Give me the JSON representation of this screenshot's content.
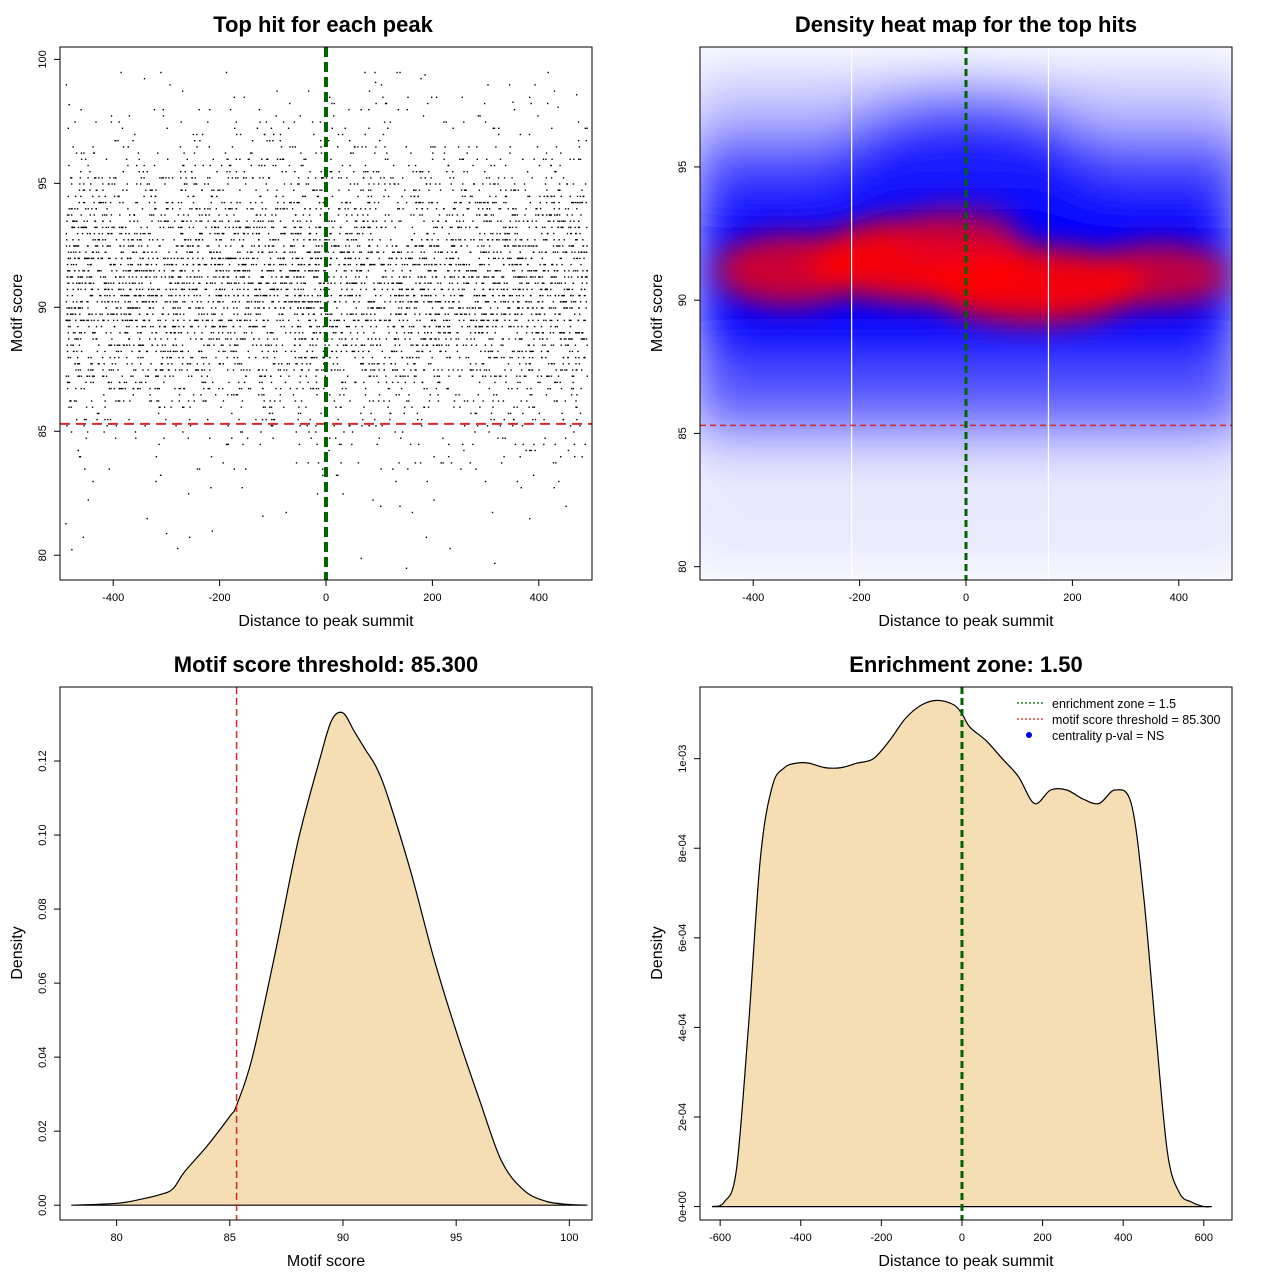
{
  "colors": {
    "points": "#000000",
    "threshold": "#d62728",
    "zone": "#006400",
    "fill": "#f5deb3",
    "heat_low": "#0000ff",
    "heat_high": "#ff0000",
    "legend_point": "#0000ff"
  },
  "chart_data": [
    {
      "id": "scatter",
      "type": "scatter",
      "title": "Top hit for each peak",
      "xlabel": "Distance to peak summit",
      "ylabel": "Motif score",
      "xlim": [
        -500,
        500
      ],
      "ylim": [
        79,
        100.5
      ],
      "xticks": [
        -400,
        -200,
        0,
        200,
        400
      ],
      "yticks": [
        80,
        85,
        90,
        95,
        100
      ],
      "xtick_labels": [
        "-400",
        "-200",
        "0",
        "200",
        "400"
      ],
      "ytick_labels": [
        "80",
        "85",
        "90",
        "95",
        "100"
      ],
      "summary": {
        "n_points_approx": 5000,
        "x_range": [
          -490,
          490
        ],
        "score_mean": 90.8,
        "score_sd": 3.0,
        "score_range": [
          79.5,
          99.5
        ]
      },
      "sample_points": [
        [
          -490,
          81.3
        ],
        [
          -484,
          98.2
        ],
        [
          -301,
          80.9
        ],
        [
          -280,
          80.3
        ],
        [
          -215,
          81.0
        ],
        [
          -120,
          81.6
        ],
        [
          65,
          79.9
        ],
        [
          92,
          99.1
        ],
        [
          150,
          79.5
        ],
        [
          185,
          99.4
        ],
        [
          232,
          80.3
        ],
        [
          316,
          79.7
        ],
        [
          350,
          98.3
        ],
        [
          435,
          98.1
        ],
        [
          450,
          82.0
        ],
        [
          470,
          98.6
        ]
      ],
      "threshold_y": 85.3,
      "summit_x": 0
    },
    {
      "id": "heatmap",
      "type": "heatmap",
      "title": "Density heat map for the top hits",
      "xlabel": "Distance to peak summit",
      "ylabel": "Motif score",
      "xlim": [
        -500,
        500
      ],
      "ylim": [
        79.5,
        99.5
      ],
      "xticks": [
        -400,
        -200,
        0,
        200,
        400
      ],
      "yticks": [
        80,
        85,
        90,
        95
      ],
      "xtick_labels": [
        "-400",
        "-200",
        "0",
        "200",
        "400"
      ],
      "ytick_labels": [
        "80",
        "85",
        "90",
        "95"
      ],
      "density_peak": {
        "x": 0,
        "y": 90.5
      },
      "high_density_band": [
        88.5,
        92.5
      ],
      "white_lines_x": [
        -215,
        155
      ],
      "threshold_y": 85.3,
      "summit_x": 0
    },
    {
      "id": "score_density",
      "type": "area",
      "title": "Motif score threshold: 85.300",
      "xlabel": "Motif score",
      "ylabel": "Density",
      "xlim": [
        77.5,
        101
      ],
      "ylim": [
        -0.004,
        0.14
      ],
      "xticks": [
        80,
        85,
        90,
        95,
        100
      ],
      "yticks": [
        0.0,
        0.02,
        0.04,
        0.06,
        0.08,
        0.1,
        0.12
      ],
      "xtick_labels": [
        "80",
        "85",
        "90",
        "95",
        "100"
      ],
      "ytick_labels": [
        "0.00",
        "0.02",
        "0.04",
        "0.06",
        "0.08",
        "0.10",
        "0.12"
      ],
      "x": [
        78.0,
        80.0,
        81.0,
        82.0,
        82.5,
        83.0,
        84.0,
        85.0,
        85.3,
        86.0,
        87.0,
        88.0,
        89.0,
        89.5,
        90.0,
        90.5,
        91.0,
        91.5,
        92.0,
        93.0,
        94.0,
        95.0,
        96.0,
        97.0,
        98.0,
        99.0,
        100.0,
        100.8
      ],
      "y": [
        0.0,
        0.0005,
        0.0015,
        0.003,
        0.0045,
        0.009,
        0.016,
        0.024,
        0.027,
        0.04,
        0.068,
        0.098,
        0.121,
        0.131,
        0.133,
        0.128,
        0.123,
        0.118,
        0.11,
        0.09,
        0.067,
        0.047,
        0.029,
        0.012,
        0.004,
        0.001,
        0.0002,
        0.0
      ],
      "threshold_x": 85.3
    },
    {
      "id": "distance_density",
      "type": "area",
      "title": "Enrichment zone: 1.50",
      "xlabel": "Distance to peak summit",
      "ylabel": "Density",
      "xlim": [
        -650,
        670
      ],
      "ylim": [
        -3e-05,
        0.00116
      ],
      "xticks": [
        -600,
        -400,
        -200,
        0,
        200,
        400,
        600
      ],
      "yticks": [
        0,
        0.0002,
        0.0004,
        0.0006,
        0.0008,
        0.001
      ],
      "xtick_labels": [
        "-600",
        "-400",
        "-200",
        "0",
        "200",
        "400",
        "600"
      ],
      "ytick_labels": [
        "0e+00",
        "2e-04",
        "4e-04",
        "6e-04",
        "8e-04",
        "1e-03"
      ],
      "x": [
        -620,
        -590,
        -560,
        -530,
        -500,
        -470,
        -440,
        -410,
        -380,
        -340,
        -300,
        -260,
        -220,
        -180,
        -140,
        -100,
        -60,
        -20,
        0,
        20,
        60,
        100,
        140,
        180,
        220,
        260,
        300,
        340,
        380,
        420,
        450,
        480,
        510,
        540,
        570,
        600,
        620
      ],
      "y": [
        0.0,
        1e-05,
        8e-05,
        0.0004,
        0.00078,
        0.00094,
        0.00098,
        0.00099,
        0.00099,
        0.00098,
        0.00098,
        0.00099,
        0.001,
        0.00104,
        0.00109,
        0.00112,
        0.00113,
        0.00112,
        0.0011,
        0.00107,
        0.00104,
        0.001,
        0.00096,
        0.0009,
        0.00093,
        0.00093,
        0.00091,
        0.0009,
        0.00093,
        0.0009,
        0.0007,
        0.0004,
        0.00012,
        3e-05,
        1e-05,
        0.0,
        0.0
      ],
      "zone_x": 0,
      "legend": {
        "position": "top-right",
        "entries": [
          {
            "label": "enrichment zone = 1.5",
            "kind": "dotted-line",
            "color": "#006400"
          },
          {
            "label": "motif score threshold = 85.300",
            "kind": "dotted-line",
            "color": "#d62728"
          },
          {
            "label": "centrality p-val = NS",
            "kind": "point",
            "color": "#0000ff"
          }
        ]
      }
    }
  ]
}
